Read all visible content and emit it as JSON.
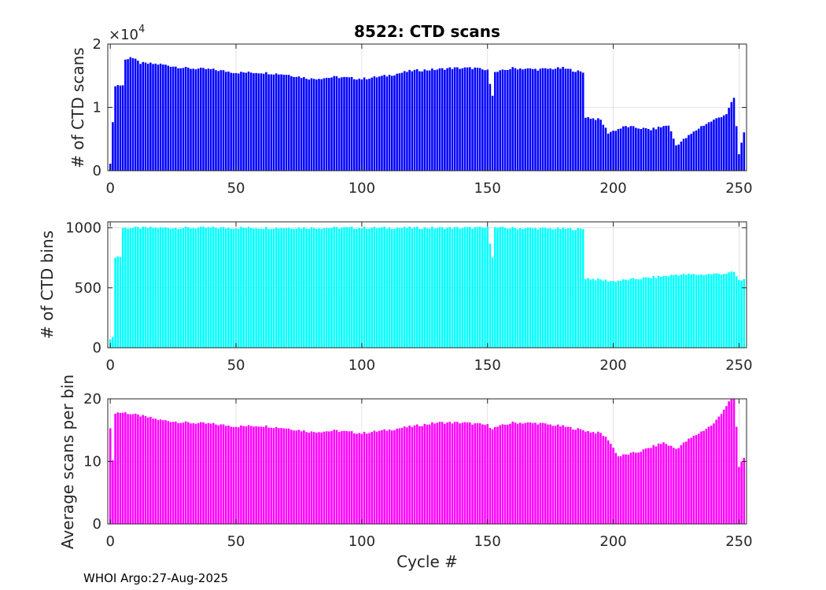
{
  "footer": "WHOI Argo:27-Aug-2025",
  "chart_data": [
    {
      "type": "bar",
      "title": "8522: CTD scans",
      "ylabel": "# of CTD scans",
      "xlabel": "",
      "exponent_label": "×10",
      "exponent_power": "4",
      "color": "#0000ff",
      "xlim": [
        -1,
        253
      ],
      "ylim": [
        0,
        2
      ],
      "xticks": [
        0,
        50,
        100,
        150,
        200,
        250
      ],
      "yticks": [
        0,
        1,
        2
      ],
      "grid": true,
      "anchors": [
        [
          0,
          0.13
        ],
        [
          1,
          0.75
        ],
        [
          2,
          1.35
        ],
        [
          5,
          1.35
        ],
        [
          6,
          1.75
        ],
        [
          8,
          1.8
        ],
        [
          12,
          1.7
        ],
        [
          20,
          1.68
        ],
        [
          30,
          1.62
        ],
        [
          40,
          1.6
        ],
        [
          50,
          1.55
        ],
        [
          60,
          1.55
        ],
        [
          70,
          1.52
        ],
        [
          80,
          1.45
        ],
        [
          90,
          1.48
        ],
        [
          100,
          1.45
        ],
        [
          110,
          1.5
        ],
        [
          120,
          1.58
        ],
        [
          130,
          1.6
        ],
        [
          135,
          1.62
        ],
        [
          145,
          1.62
        ],
        [
          150,
          1.58
        ],
        [
          152,
          1.2
        ],
        [
          153,
          1.55
        ],
        [
          160,
          1.62
        ],
        [
          170,
          1.6
        ],
        [
          180,
          1.62
        ],
        [
          188,
          1.55
        ],
        [
          189,
          0.85
        ],
        [
          195,
          0.8
        ],
        [
          198,
          0.6
        ],
        [
          205,
          0.7
        ],
        [
          215,
          0.65
        ],
        [
          222,
          0.72
        ],
        [
          225,
          0.4
        ],
        [
          235,
          0.7
        ],
        [
          245,
          0.9
        ],
        [
          248,
          1.15
        ],
        [
          250,
          0.25
        ],
        [
          251,
          0.45
        ],
        [
          252,
          0.6
        ]
      ]
    },
    {
      "type": "bar",
      "title": "",
      "ylabel": "# of CTD bins",
      "xlabel": "",
      "color": "#00ffff",
      "xlim": [
        -1,
        253
      ],
      "ylim": [
        0,
        1050
      ],
      "xticks": [
        0,
        50,
        100,
        150,
        200,
        250
      ],
      "yticks": [
        0,
        500,
        1000
      ],
      "grid": true,
      "anchors": [
        [
          0,
          80
        ],
        [
          1,
          80
        ],
        [
          2,
          760
        ],
        [
          4,
          760
        ],
        [
          5,
          1000
        ],
        [
          150,
          1000
        ],
        [
          152,
          760
        ],
        [
          153,
          1000
        ],
        [
          188,
          990
        ],
        [
          189,
          580
        ],
        [
          200,
          555
        ],
        [
          222,
          600
        ],
        [
          225,
          610
        ],
        [
          235,
          610
        ],
        [
          245,
          620
        ],
        [
          248,
          630
        ],
        [
          250,
          560
        ],
        [
          252,
          570
        ]
      ]
    },
    {
      "type": "bar",
      "title": "",
      "ylabel": "Average scans per bin",
      "xlabel": "Cycle #",
      "color": "#ff00ff",
      "xlim": [
        -1,
        253
      ],
      "ylim": [
        0,
        20
      ],
      "xticks": [
        0,
        50,
        100,
        150,
        200,
        250
      ],
      "yticks": [
        0,
        10,
        20
      ],
      "grid": true,
      "anchors": [
        [
          0,
          15.5
        ],
        [
          1,
          10
        ],
        [
          2,
          17.8
        ],
        [
          6,
          17.8
        ],
        [
          8,
          17.6
        ],
        [
          12,
          17.3
        ],
        [
          20,
          16.6
        ],
        [
          30,
          16.2
        ],
        [
          40,
          16
        ],
        [
          50,
          15.6
        ],
        [
          60,
          15.7
        ],
        [
          70,
          15.3
        ],
        [
          80,
          14.7
        ],
        [
          90,
          14.9
        ],
        [
          100,
          14.5
        ],
        [
          110,
          15
        ],
        [
          120,
          15.6
        ],
        [
          130,
          16.2
        ],
        [
          140,
          16.2
        ],
        [
          150,
          15.8
        ],
        [
          152,
          15.3
        ],
        [
          160,
          16.2
        ],
        [
          170,
          16.1
        ],
        [
          180,
          15.6
        ],
        [
          188,
          15
        ],
        [
          190,
          14.8
        ],
        [
          195,
          14.5
        ],
        [
          198,
          13.5
        ],
        [
          202,
          10.8
        ],
        [
          210,
          11.5
        ],
        [
          220,
          13
        ],
        [
          225,
          12
        ],
        [
          230,
          13.5
        ],
        [
          240,
          16
        ],
        [
          246,
          19.5
        ],
        [
          248,
          20
        ],
        [
          249,
          15.5
        ],
        [
          250,
          9
        ],
        [
          251,
          10
        ],
        [
          252,
          10.5
        ]
      ]
    }
  ]
}
